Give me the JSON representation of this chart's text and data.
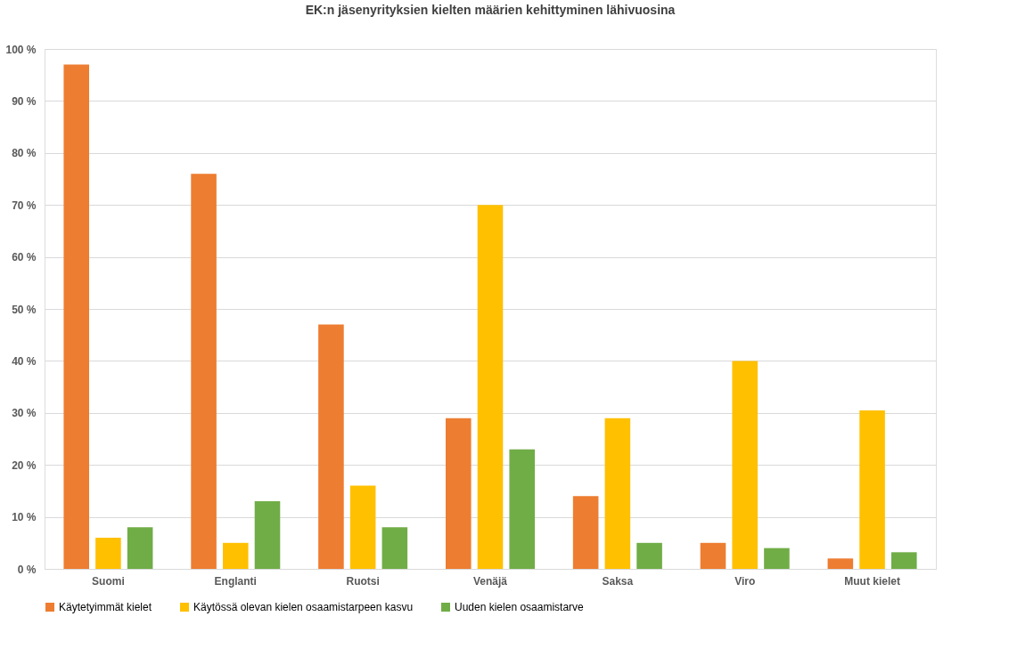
{
  "chart_data": {
    "type": "bar",
    "title": "EK:n jäsenyrityksien kielten määrien kehittyminen lähivuosina",
    "categories": [
      "Suomi",
      "Englanti",
      "Ruotsi",
      "Venäjä",
      "Saksa",
      "Viro",
      "Muut kielet"
    ],
    "series": [
      {
        "name": "Käytetyimmät kielet",
        "color": "#ed7d31",
        "values": [
          97,
          76,
          47,
          29,
          14,
          5,
          2
        ]
      },
      {
        "name": "Käytössä olevan kielen osaamistarpeen kasvu",
        "color": "#ffc000",
        "values": [
          6,
          5,
          16,
          70,
          29,
          40,
          30.5
        ]
      },
      {
        "name": "Uuden kielen osaamistarve",
        "color": "#70ad47",
        "values": [
          8,
          13,
          8,
          23,
          5,
          4,
          3.2
        ]
      }
    ],
    "ylim": [
      0,
      100
    ],
    "yticks": [
      {
        "value": 0,
        "label": "0 %"
      },
      {
        "value": 10,
        "label": "10 %"
      },
      {
        "value": 20,
        "label": "20 %"
      },
      {
        "value": 30,
        "label": "30 %"
      },
      {
        "value": 40,
        "label": "40 %"
      },
      {
        "value": 50,
        "label": "50 %"
      },
      {
        "value": 60,
        "label": "60 %"
      },
      {
        "value": 70,
        "label": "70 %"
      },
      {
        "value": 80,
        "label": "80 %"
      },
      {
        "value": 90,
        "label": "90 %"
      },
      {
        "value": 100,
        "label": "100 %"
      }
    ],
    "grid": "y",
    "legend": "bottom"
  }
}
